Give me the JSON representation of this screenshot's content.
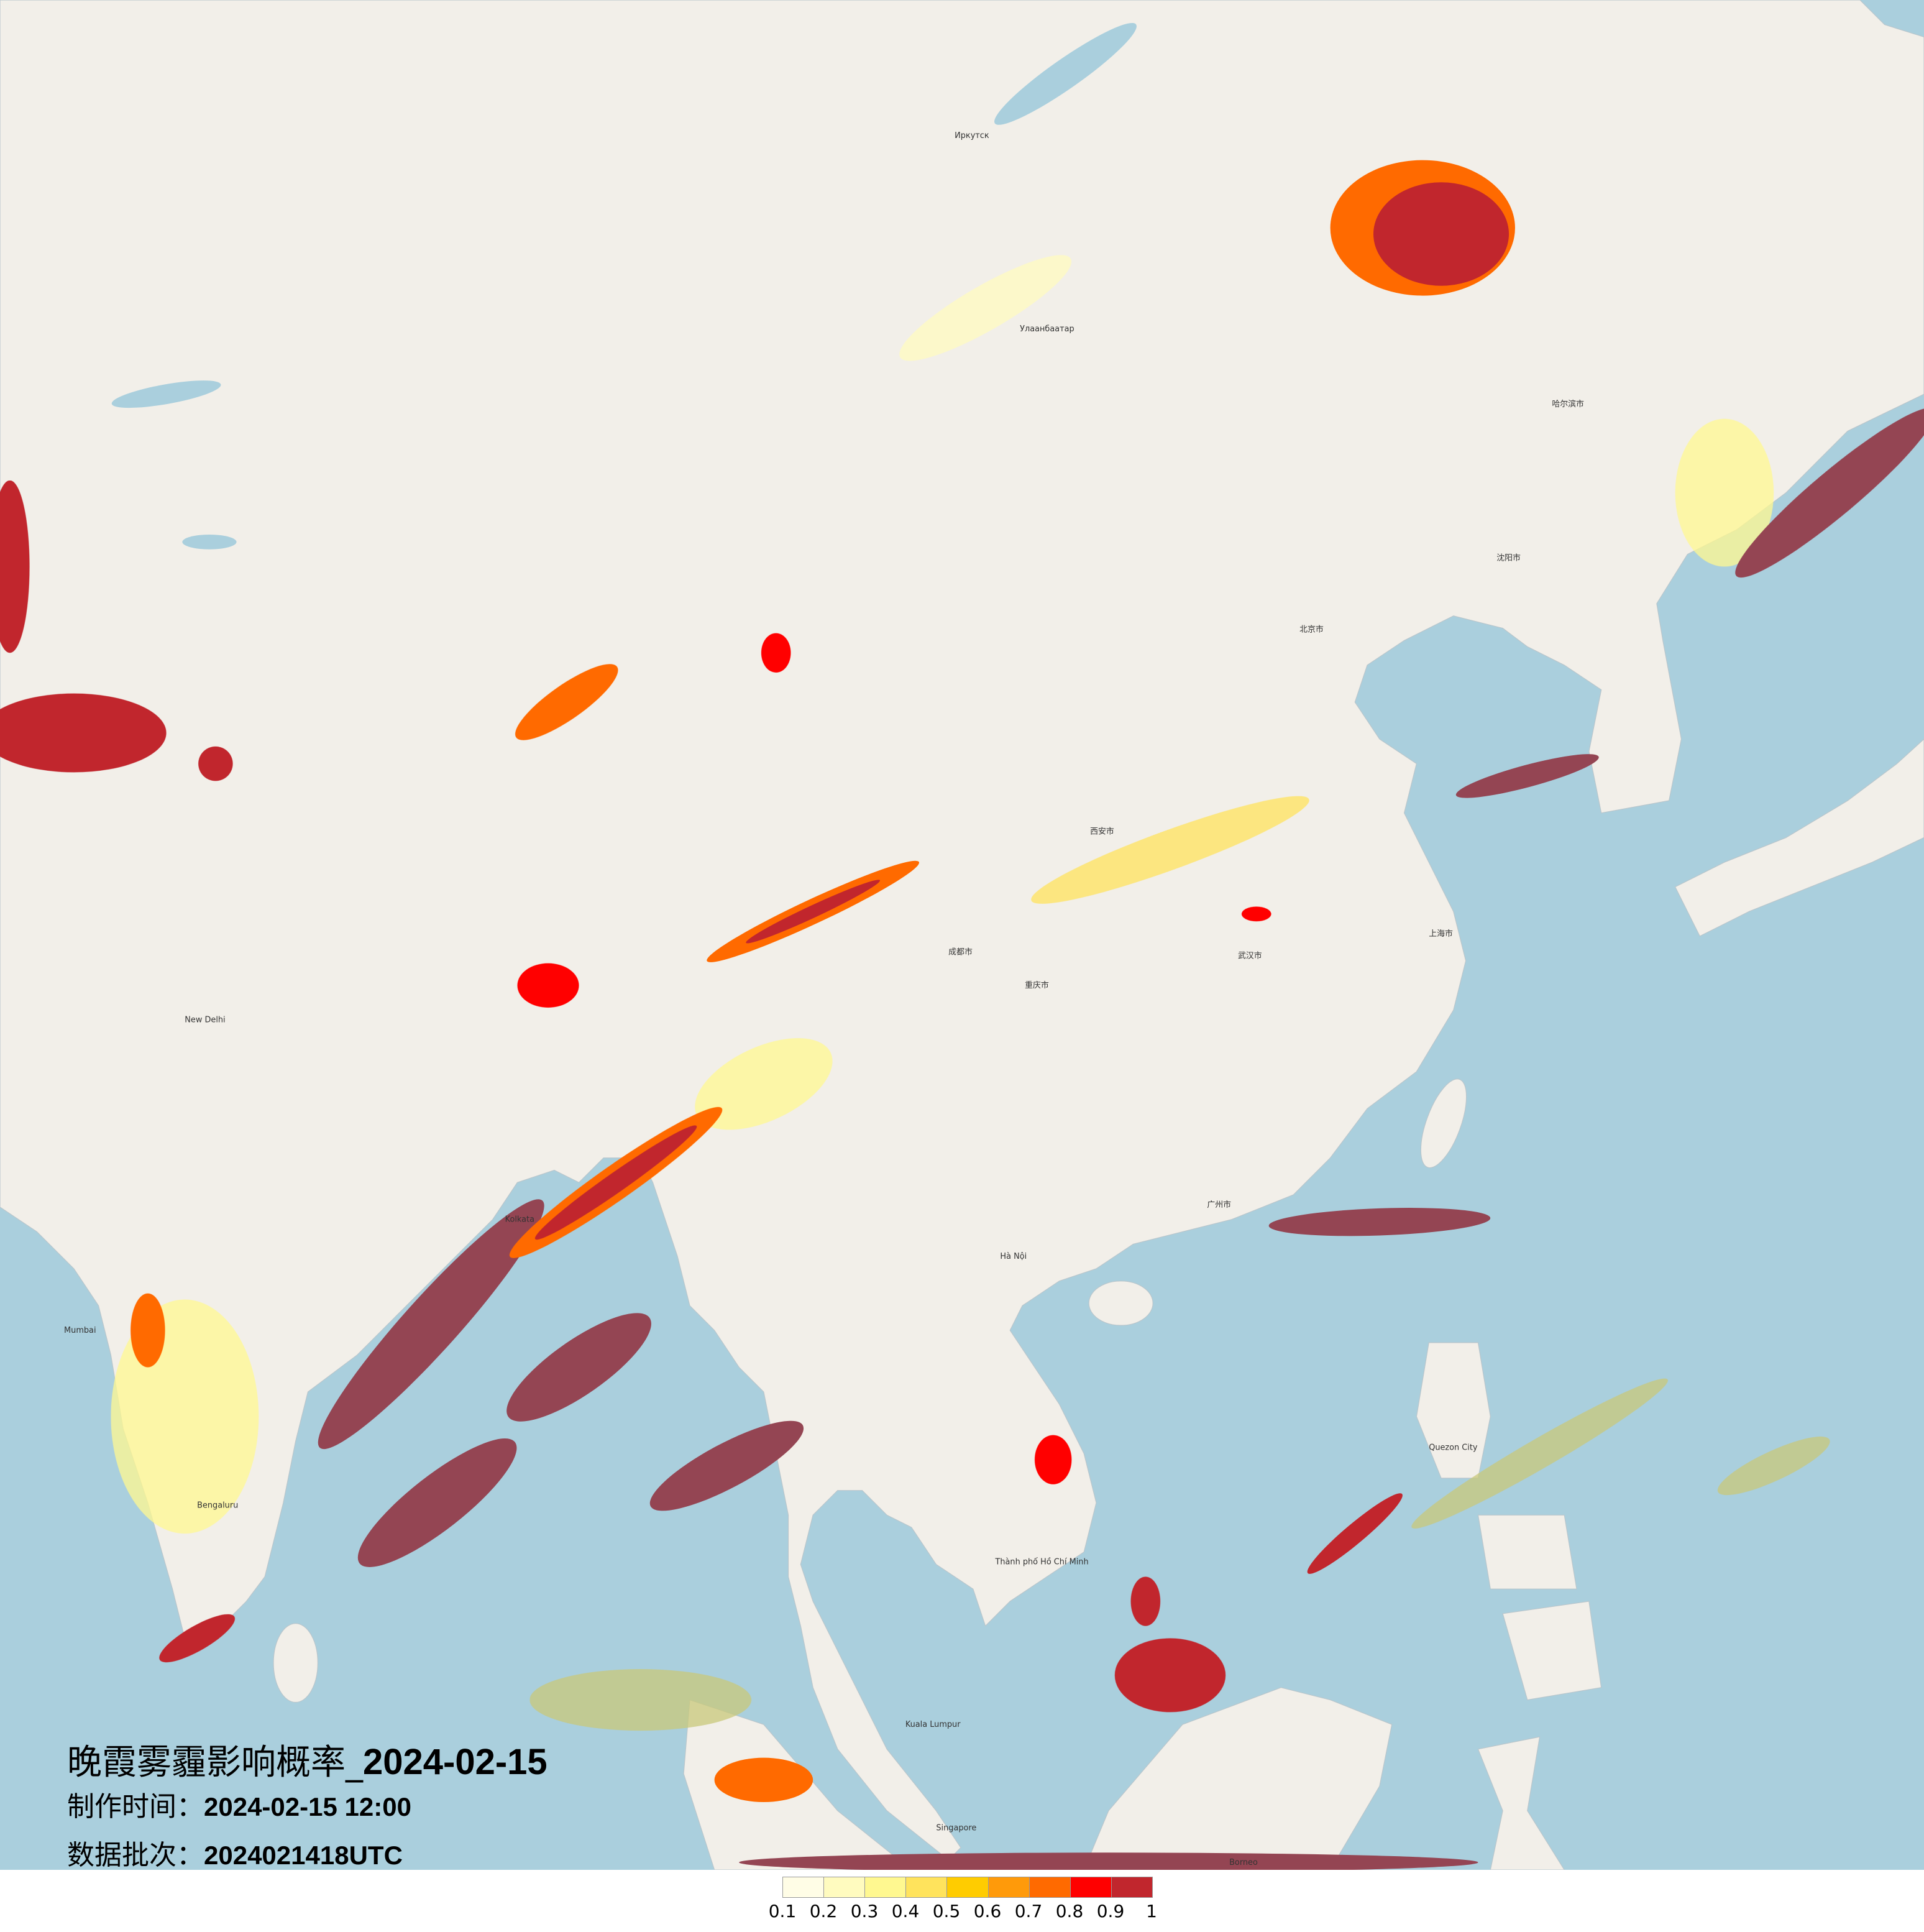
{
  "title": {
    "prefix": "晚霞雾霾影响概率_",
    "date": "2024-02-15"
  },
  "production_time": {
    "label": "制作时间：",
    "value": "2024-02-15 12:00"
  },
  "data_batch": {
    "label": "数据批次：",
    "value": "2024021418UTC"
  },
  "legend": {
    "colors": [
      "#fffde6",
      "#fffbbf",
      "#fff890",
      "#ffe35c",
      "#ffcc00",
      "#ff9a0a",
      "#ff6a00",
      "#ff0000",
      "#c1262d"
    ],
    "labels": [
      "0.1",
      "0.2",
      "0.3",
      "0.4",
      "0.5",
      "0.6",
      "0.7",
      "0.8",
      "0.9",
      "1"
    ]
  },
  "map": {
    "colors": {
      "land": "#f2efe9",
      "sea": "#aacfdd",
      "high_prob_over_sea": "#944553"
    },
    "places": [
      "北京市",
      "上海市",
      "武汉市",
      "广州市",
      "成都市",
      "重庆市",
      "西安市",
      "沈阳市",
      "哈尔滨市",
      "Hà Nội",
      "Bengaluru",
      "Улаанбаатар",
      "Иркутск",
      "Kolkata",
      "Thành phố Hồ Chí Minh",
      "Quezon City",
      "Kuala Lumpur",
      "Singapore",
      "Mumbai",
      "New Delhi",
      "Borneo"
    ]
  }
}
